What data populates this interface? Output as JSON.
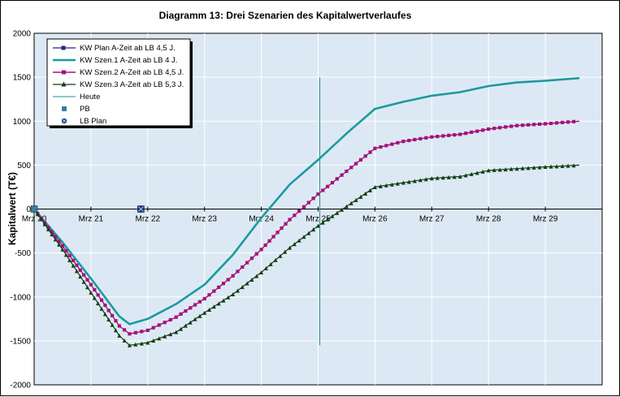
{
  "chart_data": {
    "type": "line",
    "title": "Diagramm 13: Drei Szenarien des Kapitalwertverlaufes",
    "ylabel": "Kapitalwert (T€)",
    "xlabel": "",
    "ylim": [
      -2000,
      2000
    ],
    "yticks": [
      2000,
      1500,
      1000,
      500,
      0,
      -500,
      -1000,
      -1500,
      -2000
    ],
    "ytick_labels": [
      "2000",
      "1500",
      "1000",
      "500",
      "0",
      "-500",
      "-1000",
      "-1500",
      "-2000"
    ],
    "xlim": [
      0,
      10
    ],
    "xticks": [
      0,
      1,
      2,
      3,
      4,
      5,
      6,
      7,
      8,
      9
    ],
    "xtick_labels": [
      "Mrz 20",
      "Mrz 21",
      "Mrz 22",
      "Mrz 23",
      "Mrz 24",
      "Mrz 25",
      "Mrz 26",
      "Mrz 27",
      "Mrz 28",
      "Mrz 29"
    ],
    "grid": true,
    "legend_position": "top-left",
    "colors": {
      "plot_bg": "#dce9f4",
      "grid": "#ffffff",
      "plan": "#1f2a7a",
      "szen1": "#1b9aa0",
      "szen2": "#a5127a",
      "szen3": "#123d12",
      "heute": "#1f8f95",
      "pb": "#3a7fa0",
      "lbplan": "#1f2a7a"
    },
    "series": [
      {
        "key": "plan",
        "name": "KW Plan A-Zeit ab LB 4,5 J.",
        "points": [
          [
            0,
            0
          ]
        ]
      },
      {
        "key": "szen1",
        "name": "KW Szen.1 A-Zeit ab LB 4 J.",
        "points": [
          [
            0,
            0
          ],
          [
            0.5,
            -380
          ],
          [
            1,
            -790
          ],
          [
            1.5,
            -1220
          ],
          [
            1.68,
            -1310
          ],
          [
            2,
            -1250
          ],
          [
            2.5,
            -1080
          ],
          [
            3,
            -860
          ],
          [
            3.5,
            -520
          ],
          [
            4,
            -100
          ],
          [
            4.5,
            280
          ],
          [
            5,
            560
          ],
          [
            5.5,
            860
          ],
          [
            6,
            1140
          ],
          [
            6.5,
            1220
          ],
          [
            7,
            1290
          ],
          [
            7.5,
            1330
          ],
          [
            8,
            1400
          ],
          [
            8.5,
            1440
          ],
          [
            9,
            1460
          ],
          [
            9.6,
            1490
          ]
        ]
      },
      {
        "key": "szen2",
        "name": "KW Szen.2 A-Zeit ab LB 4,5 J.",
        "points": [
          [
            0,
            0
          ],
          [
            0.5,
            -420
          ],
          [
            1,
            -860
          ],
          [
            1.5,
            -1330
          ],
          [
            1.68,
            -1420
          ],
          [
            2,
            -1380
          ],
          [
            2.5,
            -1230
          ],
          [
            3,
            -1020
          ],
          [
            3.5,
            -760
          ],
          [
            4,
            -460
          ],
          [
            4.5,
            -120
          ],
          [
            5,
            170
          ],
          [
            5.5,
            430
          ],
          [
            6,
            690
          ],
          [
            6.5,
            770
          ],
          [
            7,
            820
          ],
          [
            7.5,
            850
          ],
          [
            8,
            910
          ],
          [
            8.5,
            950
          ],
          [
            9,
            970
          ],
          [
            9.6,
            1000
          ]
        ]
      },
      {
        "key": "szen3",
        "name": "KW Szen.3 A-Zeit ab LB 5,3 J.",
        "points": [
          [
            0,
            0
          ],
          [
            0.5,
            -460
          ],
          [
            1,
            -950
          ],
          [
            1.5,
            -1440
          ],
          [
            1.68,
            -1550
          ],
          [
            2,
            -1520
          ],
          [
            2.5,
            -1400
          ],
          [
            3,
            -1180
          ],
          [
            3.5,
            -970
          ],
          [
            4,
            -720
          ],
          [
            4.5,
            -440
          ],
          [
            5,
            -190
          ],
          [
            5.5,
            30
          ],
          [
            6,
            250
          ],
          [
            6.5,
            300
          ],
          [
            7,
            350
          ],
          [
            7.5,
            370
          ],
          [
            8,
            440
          ],
          [
            8.5,
            460
          ],
          [
            9,
            480
          ],
          [
            9.6,
            500
          ]
        ]
      }
    ],
    "heute": {
      "name": "Heute",
      "x": 5.03,
      "y_range": [
        -1550,
        1500
      ]
    },
    "markers": [
      {
        "key": "pb",
        "name": "PB",
        "x": 0,
        "y": 0
      },
      {
        "key": "lbplan",
        "name": "LB Plan",
        "x": 1.88,
        "y": 0
      }
    ]
  }
}
